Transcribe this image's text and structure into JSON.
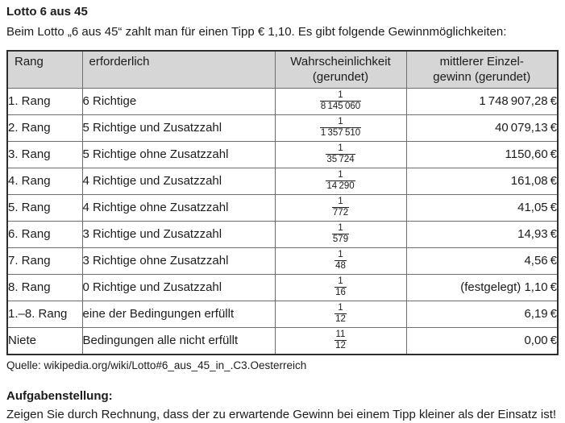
{
  "page": {
    "title": "Lotto 6 aus 45",
    "intro": "Beim Lotto „6 aus 45“ zahlt man für einen Tipp € 1,10. Es gibt folgende Gewinnmöglichkeiten:",
    "source": "Quelle: wikipedia.org/wiki/Lotto#6_aus_45_in_.C3.Oesterreich",
    "task_heading": "Aufgabenstellung:",
    "task_text": "Zeigen Sie durch Rechnung, dass der zu erwartende Gewinn bei einem Tipp kleiner als der Einsatz ist!"
  },
  "table": {
    "header_bg_color": "#d6d6d6",
    "headers": [
      {
        "line1": "Rang",
        "line2": ""
      },
      {
        "line1": "erforderlich",
        "line2": ""
      },
      {
        "line1": "Wahrscheinlichkeit",
        "line2": "(gerundet)"
      },
      {
        "line1": "mittlerer Einzel-",
        "line2": "gewinn (gerundet)"
      }
    ],
    "rows": [
      {
        "rang": "1. Rang",
        "erforderlich": "6 Richtige",
        "prob_num": "1",
        "prob_den": "8 145 060",
        "gewinn": "1 748 907,28 €"
      },
      {
        "rang": "2. Rang",
        "erforderlich": "5 Richtige und Zusatzzahl",
        "prob_num": "1",
        "prob_den": "1 357 510",
        "gewinn": "40 079,13 €"
      },
      {
        "rang": "3. Rang",
        "erforderlich": "5 Richtige ohne Zusatzzahl",
        "prob_num": "1",
        "prob_den": "35 724",
        "gewinn": "1150,60 €"
      },
      {
        "rang": "4. Rang",
        "erforderlich": "4 Richtige und Zusatzzahl",
        "prob_num": "1",
        "prob_den": "14 290",
        "gewinn": "161,08 €"
      },
      {
        "rang": "5. Rang",
        "erforderlich": "4 Richtige ohne Zusatzzahl",
        "prob_num": "1",
        "prob_den": "772",
        "gewinn": "41,05 €"
      },
      {
        "rang": "6. Rang",
        "erforderlich": "3 Richtige und Zusatzzahl",
        "prob_num": "1",
        "prob_den": "579",
        "gewinn": "14,93 €"
      },
      {
        "rang": "7. Rang",
        "erforderlich": "3 Richtige ohne Zusatzzahl",
        "prob_num": "1",
        "prob_den": "48",
        "gewinn": "4,56 €"
      },
      {
        "rang": "8. Rang",
        "erforderlich": "0 Richtige und Zusatzzahl",
        "prob_num": "1",
        "prob_den": "16",
        "gewinn": "(festgelegt) 1,10 €"
      },
      {
        "rang": "1.–8. Rang",
        "erforderlich": "eine der Bedingungen erfüllt",
        "prob_num": "1",
        "prob_den": "12",
        "gewinn": "6,19 €"
      },
      {
        "rang": "Niete",
        "erforderlich": "Bedingungen alle nicht erfüllt",
        "prob_num": "11",
        "prob_den": "12",
        "gewinn": "0,00 €"
      }
    ]
  }
}
